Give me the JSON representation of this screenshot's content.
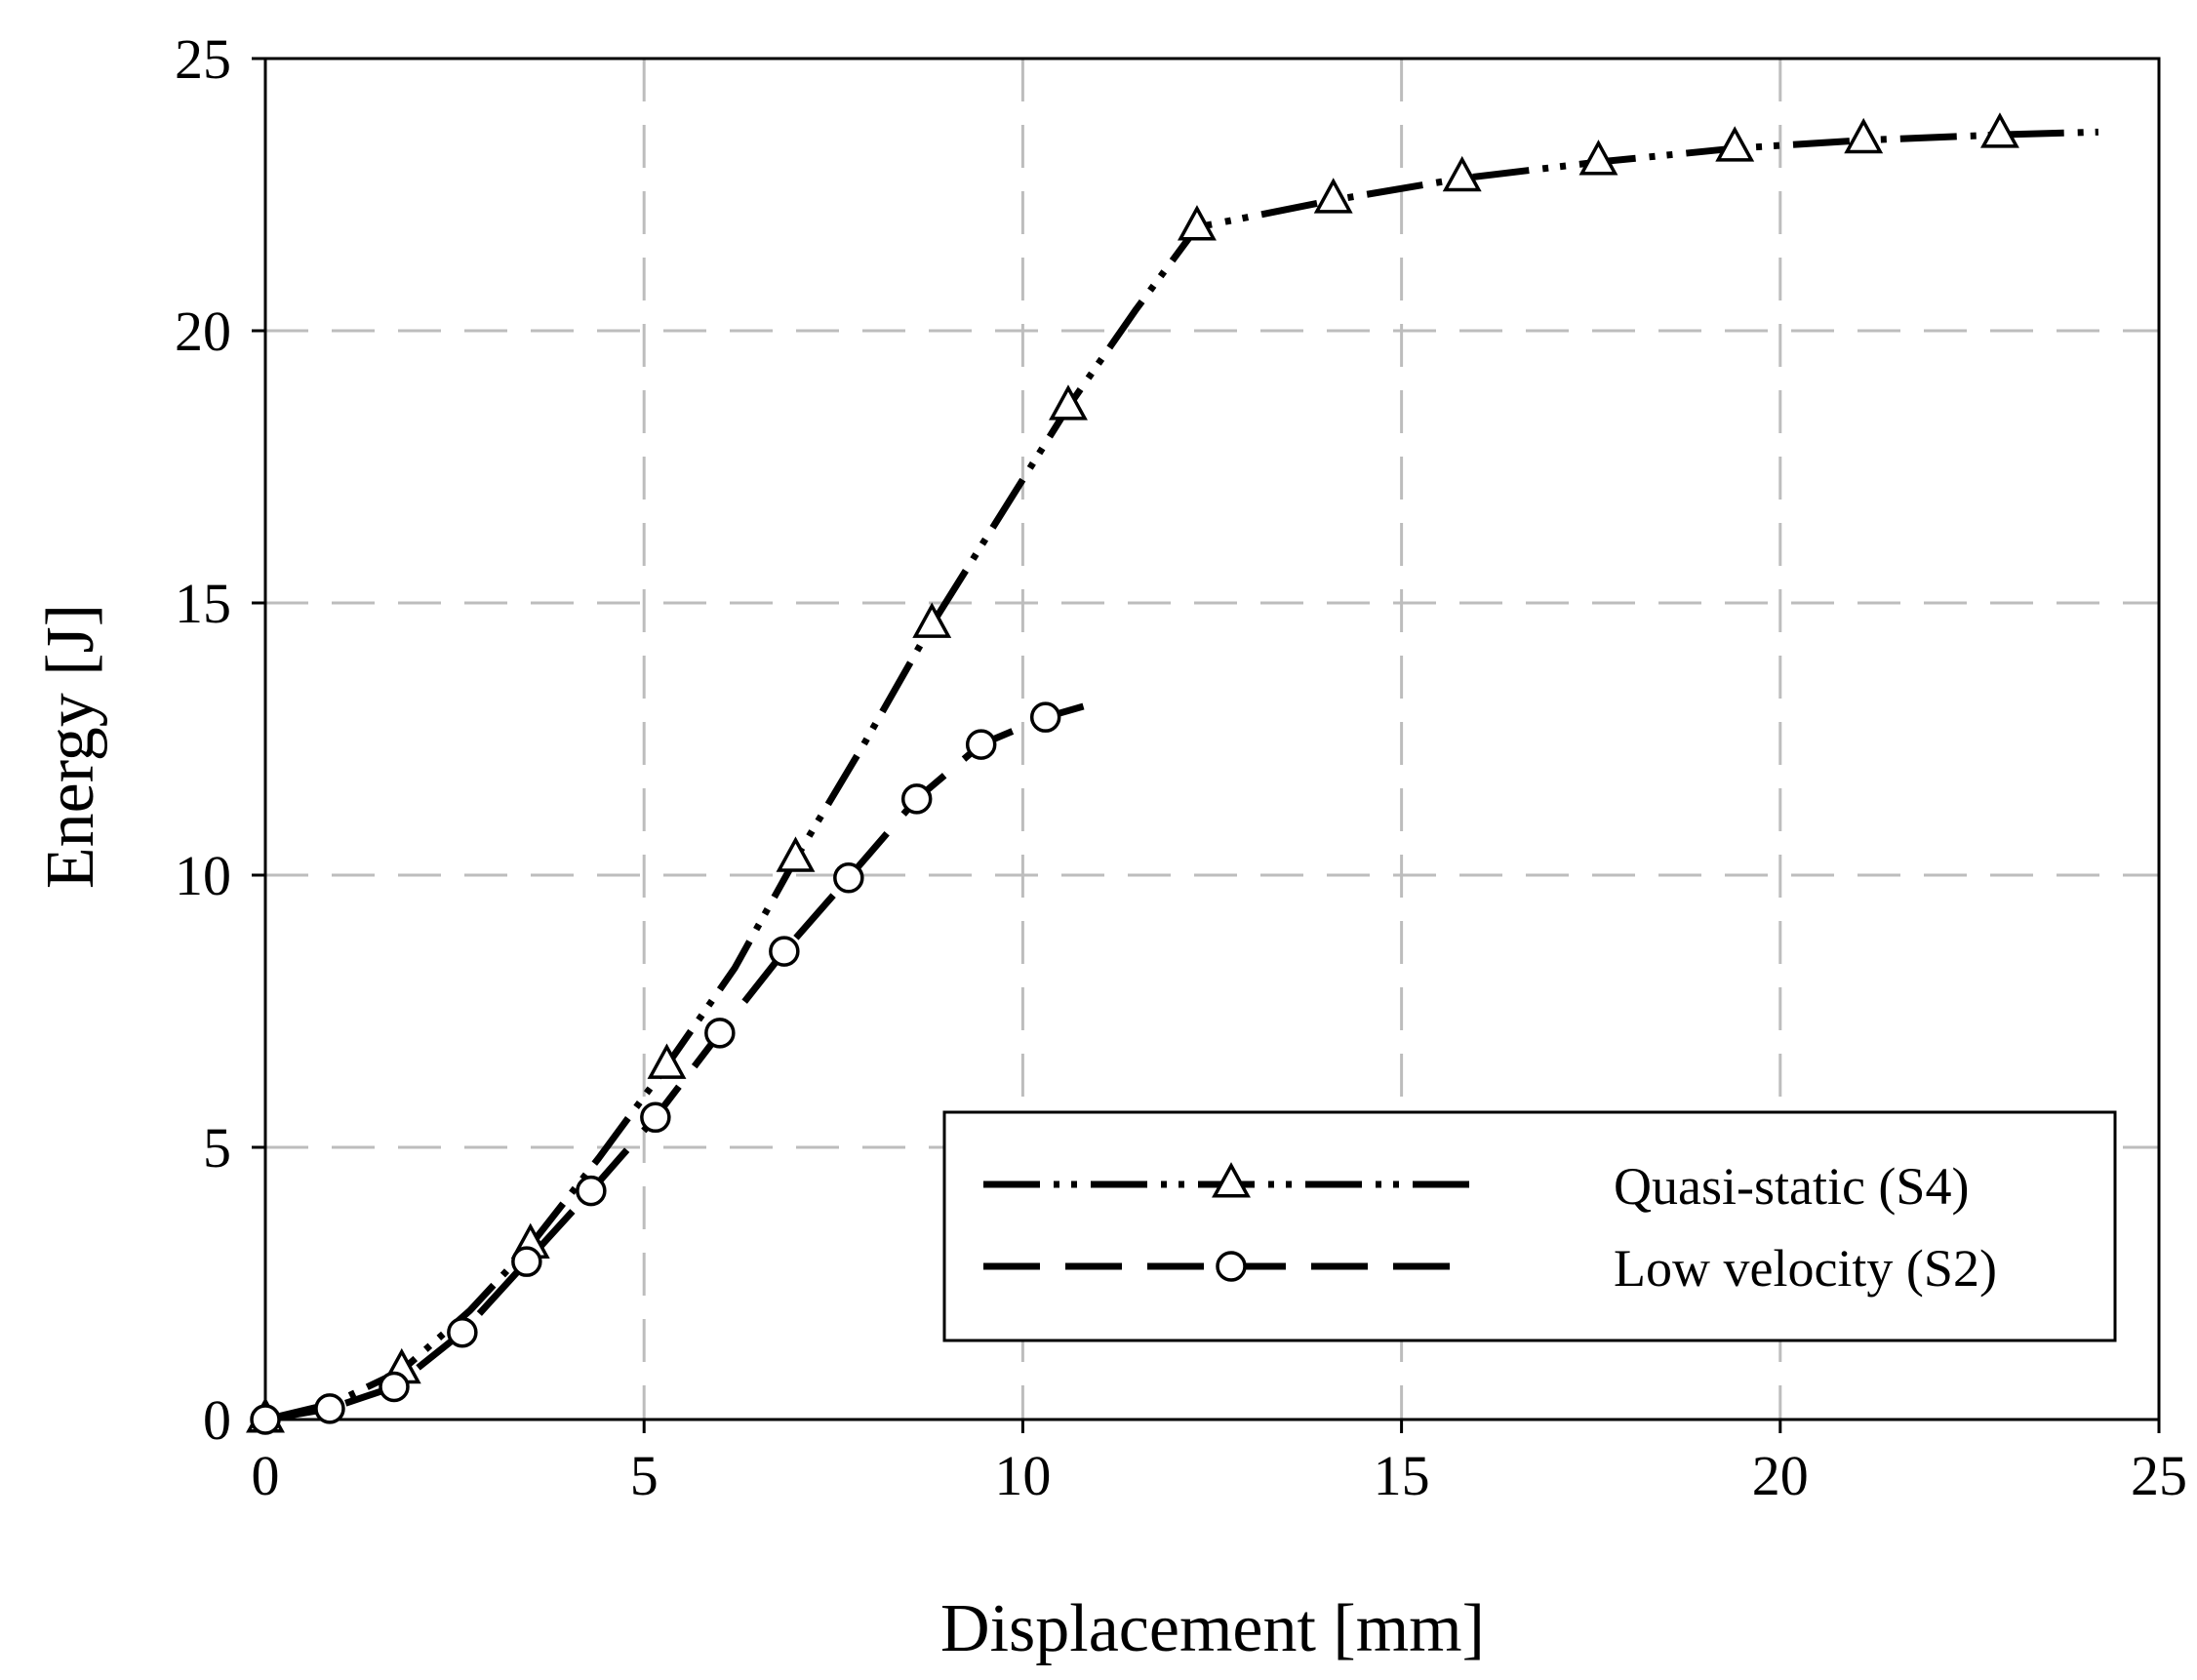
{
  "chart_data": {
    "type": "line",
    "title": "",
    "xlabel": "Displacement [mm]",
    "ylabel": "Energy [J]",
    "xlim": [
      0,
      25
    ],
    "ylim": [
      0,
      25
    ],
    "x_ticks": [
      0,
      5,
      10,
      15,
      20,
      25
    ],
    "y_ticks": [
      0,
      5,
      10,
      15,
      20,
      25
    ],
    "grid": true,
    "legend_position": "bottom-right",
    "series": [
      {
        "name": "Quasi-static (S4)",
        "marker": "triangle",
        "line_style": "dash-dot-dot",
        "color": "#000000",
        "x": [
          0,
          0.9,
          1.8,
          2.7,
          3.5,
          4.4,
          5.3,
          6.2,
          7.0,
          7.9,
          8.8,
          9.7,
          10.6,
          11.5,
          12.3,
          14.1,
          15.8,
          17.6,
          19.4,
          21.1,
          22.9,
          24.2
        ],
        "y": [
          0,
          0.3,
          0.9,
          2.0,
          3.2,
          4.8,
          6.5,
          8.3,
          10.3,
          12.4,
          14.6,
          16.6,
          18.6,
          20.4,
          21.9,
          22.4,
          22.8,
          23.1,
          23.35,
          23.5,
          23.6,
          23.65
        ],
        "marker_x": [
          0,
          1.8,
          3.5,
          5.3,
          7.0,
          8.8,
          10.6,
          12.3,
          14.1,
          15.8,
          17.6,
          19.4,
          21.1,
          22.9
        ],
        "marker_y": [
          0,
          0.9,
          3.2,
          6.5,
          10.3,
          14.6,
          18.6,
          21.9,
          22.4,
          22.8,
          23.1,
          23.35,
          23.5,
          23.6
        ]
      },
      {
        "name": "Low velocity (S2)",
        "marker": "circle",
        "line_style": "dash",
        "color": "#000000",
        "x": [
          0,
          0.85,
          1.7,
          2.6,
          3.45,
          4.3,
          5.15,
          6.0,
          6.85,
          7.7,
          8.6,
          9.45,
          10.3,
          10.8
        ],
        "y": [
          0,
          0.2,
          0.6,
          1.6,
          2.9,
          4.2,
          5.55,
          7.1,
          8.6,
          9.95,
          11.4,
          12.4,
          12.9,
          13.1
        ],
        "marker_x": [
          0,
          0.85,
          1.7,
          2.6,
          3.45,
          4.3,
          5.15,
          6.0,
          6.85,
          7.7,
          8.6,
          9.45,
          10.3
        ],
        "marker_y": [
          0,
          0.2,
          0.6,
          1.6,
          2.9,
          4.2,
          5.55,
          7.1,
          8.6,
          9.95,
          11.4,
          12.4,
          12.9
        ]
      }
    ]
  }
}
